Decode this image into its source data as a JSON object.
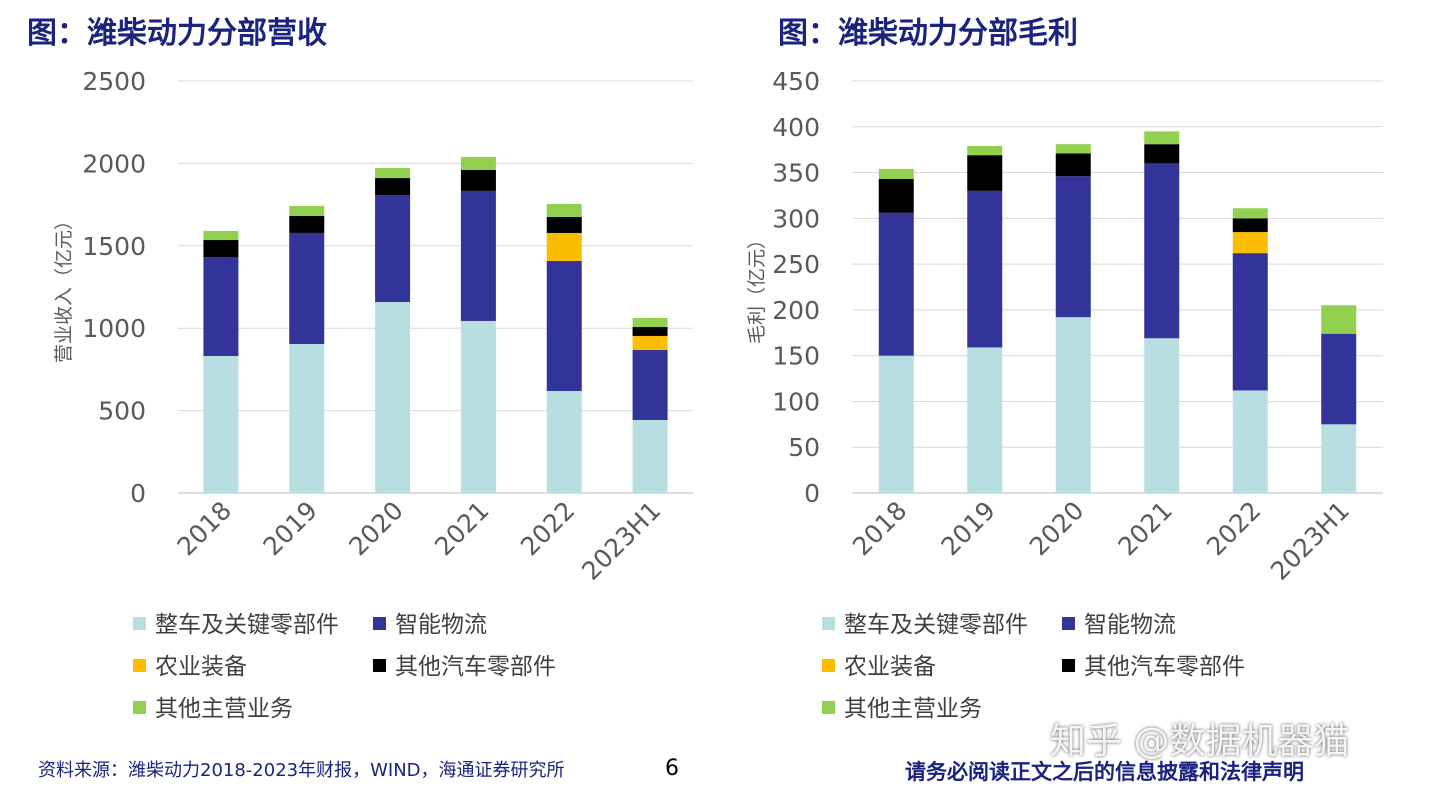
{
  "colors": {
    "整车及关键零部件": "#b7dfe1",
    "智能物流": "#33349a",
    "农业装备": "#fbbd00",
    "其他汽车零部件": "#000000",
    "其他主营业务": "#92d050"
  },
  "chart_data": [
    {
      "type": "bar",
      "stacked": true,
      "title": "图：潍柴动力分部营收",
      "ylabel": "营业收入（亿元）",
      "ylim": [
        0,
        2500
      ],
      "yticks": [
        0,
        500,
        1000,
        1500,
        2000,
        2500
      ],
      "grid": true,
      "legend": "bottom",
      "categories": [
        "2018",
        "2019",
        "2020",
        "2021",
        "2022",
        "2023H1"
      ],
      "series": [
        {
          "name": "整车及关键零部件",
          "values": [
            831,
            904,
            1159,
            1044,
            619,
            443
          ]
        },
        {
          "name": "智能物流",
          "values": [
            601,
            674,
            649,
            789,
            789,
            425
          ]
        },
        {
          "name": "农业装备",
          "values": [
            0,
            0,
            0,
            0,
            170,
            85
          ]
        },
        {
          "name": "其他汽车零部件",
          "values": [
            103,
            103,
            103,
            127,
            97,
            54
          ]
        },
        {
          "name": "其他主营业务",
          "values": [
            55,
            61,
            61,
            79,
            79,
            55
          ]
        }
      ]
    },
    {
      "type": "bar",
      "stacked": true,
      "title": "图：潍柴动力分部毛利",
      "ylabel": "毛利（亿元）",
      "ylim": [
        0,
        450
      ],
      "yticks": [
        0,
        50,
        100,
        150,
        200,
        250,
        300,
        350,
        400,
        450
      ],
      "grid": true,
      "legend": "bottom",
      "categories": [
        "2018",
        "2019",
        "2020",
        "2021",
        "2022",
        "2023H1"
      ],
      "series": [
        {
          "name": "整车及关键零部件",
          "values": [
            150,
            159,
            192,
            169,
            112,
            75
          ]
        },
        {
          "name": "智能物流",
          "values": [
            156,
            171,
            154,
            191,
            150,
            99
          ]
        },
        {
          "name": "农业装备",
          "values": [
            0,
            0,
            0,
            0,
            23,
            0
          ]
        },
        {
          "name": "其他汽车零部件",
          "values": [
            37,
            39,
            25,
            21,
            15,
            0
          ]
        },
        {
          "name": "其他主营业务",
          "values": [
            11,
            10,
            10,
            14,
            11,
            31
          ]
        }
      ]
    }
  ],
  "footer": {
    "source": "资料来源：潍柴动力2018-2023年财报，WIND，海通证券研究所",
    "page": "6",
    "disclaimer": "请务必阅读正文之后的信息披露和法律声明"
  },
  "watermark": "知乎 @数据机器猫"
}
